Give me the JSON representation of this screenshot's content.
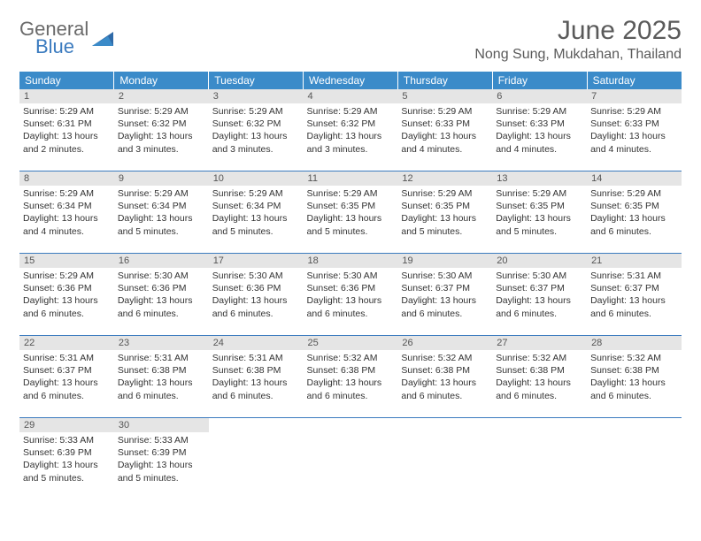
{
  "logo": {
    "line1": "General",
    "line2": "Blue"
  },
  "title": "June 2025",
  "location": "Nong Sung, Mukdahan, Thailand",
  "colors": {
    "header_bg": "#3b8bc9",
    "header_text": "#ffffff",
    "daynum_bg": "#e5e5e5",
    "rule": "#3b7bbf",
    "text": "#333333",
    "title_text": "#5a5a5a"
  },
  "weekdays": [
    "Sunday",
    "Monday",
    "Tuesday",
    "Wednesday",
    "Thursday",
    "Friday",
    "Saturday"
  ],
  "weeks": [
    [
      {
        "n": "1",
        "sr": "5:29 AM",
        "ss": "6:31 PM",
        "dl": "13 hours and 2 minutes."
      },
      {
        "n": "2",
        "sr": "5:29 AM",
        "ss": "6:32 PM",
        "dl": "13 hours and 3 minutes."
      },
      {
        "n": "3",
        "sr": "5:29 AM",
        "ss": "6:32 PM",
        "dl": "13 hours and 3 minutes."
      },
      {
        "n": "4",
        "sr": "5:29 AM",
        "ss": "6:32 PM",
        "dl": "13 hours and 3 minutes."
      },
      {
        "n": "5",
        "sr": "5:29 AM",
        "ss": "6:33 PM",
        "dl": "13 hours and 4 minutes."
      },
      {
        "n": "6",
        "sr": "5:29 AM",
        "ss": "6:33 PM",
        "dl": "13 hours and 4 minutes."
      },
      {
        "n": "7",
        "sr": "5:29 AM",
        "ss": "6:33 PM",
        "dl": "13 hours and 4 minutes."
      }
    ],
    [
      {
        "n": "8",
        "sr": "5:29 AM",
        "ss": "6:34 PM",
        "dl": "13 hours and 4 minutes."
      },
      {
        "n": "9",
        "sr": "5:29 AM",
        "ss": "6:34 PM",
        "dl": "13 hours and 5 minutes."
      },
      {
        "n": "10",
        "sr": "5:29 AM",
        "ss": "6:34 PM",
        "dl": "13 hours and 5 minutes."
      },
      {
        "n": "11",
        "sr": "5:29 AM",
        "ss": "6:35 PM",
        "dl": "13 hours and 5 minutes."
      },
      {
        "n": "12",
        "sr": "5:29 AM",
        "ss": "6:35 PM",
        "dl": "13 hours and 5 minutes."
      },
      {
        "n": "13",
        "sr": "5:29 AM",
        "ss": "6:35 PM",
        "dl": "13 hours and 5 minutes."
      },
      {
        "n": "14",
        "sr": "5:29 AM",
        "ss": "6:35 PM",
        "dl": "13 hours and 6 minutes."
      }
    ],
    [
      {
        "n": "15",
        "sr": "5:29 AM",
        "ss": "6:36 PM",
        "dl": "13 hours and 6 minutes."
      },
      {
        "n": "16",
        "sr": "5:30 AM",
        "ss": "6:36 PM",
        "dl": "13 hours and 6 minutes."
      },
      {
        "n": "17",
        "sr": "5:30 AM",
        "ss": "6:36 PM",
        "dl": "13 hours and 6 minutes."
      },
      {
        "n": "18",
        "sr": "5:30 AM",
        "ss": "6:36 PM",
        "dl": "13 hours and 6 minutes."
      },
      {
        "n": "19",
        "sr": "5:30 AM",
        "ss": "6:37 PM",
        "dl": "13 hours and 6 minutes."
      },
      {
        "n": "20",
        "sr": "5:30 AM",
        "ss": "6:37 PM",
        "dl": "13 hours and 6 minutes."
      },
      {
        "n": "21",
        "sr": "5:31 AM",
        "ss": "6:37 PM",
        "dl": "13 hours and 6 minutes."
      }
    ],
    [
      {
        "n": "22",
        "sr": "5:31 AM",
        "ss": "6:37 PM",
        "dl": "13 hours and 6 minutes."
      },
      {
        "n": "23",
        "sr": "5:31 AM",
        "ss": "6:38 PM",
        "dl": "13 hours and 6 minutes."
      },
      {
        "n": "24",
        "sr": "5:31 AM",
        "ss": "6:38 PM",
        "dl": "13 hours and 6 minutes."
      },
      {
        "n": "25",
        "sr": "5:32 AM",
        "ss": "6:38 PM",
        "dl": "13 hours and 6 minutes."
      },
      {
        "n": "26",
        "sr": "5:32 AM",
        "ss": "6:38 PM",
        "dl": "13 hours and 6 minutes."
      },
      {
        "n": "27",
        "sr": "5:32 AM",
        "ss": "6:38 PM",
        "dl": "13 hours and 6 minutes."
      },
      {
        "n": "28",
        "sr": "5:32 AM",
        "ss": "6:38 PM",
        "dl": "13 hours and 6 minutes."
      }
    ],
    [
      {
        "n": "29",
        "sr": "5:33 AM",
        "ss": "6:39 PM",
        "dl": "13 hours and 5 minutes."
      },
      {
        "n": "30",
        "sr": "5:33 AM",
        "ss": "6:39 PM",
        "dl": "13 hours and 5 minutes."
      },
      null,
      null,
      null,
      null,
      null
    ]
  ],
  "labels": {
    "sunrise": "Sunrise:",
    "sunset": "Sunset:",
    "daylight": "Daylight:"
  }
}
